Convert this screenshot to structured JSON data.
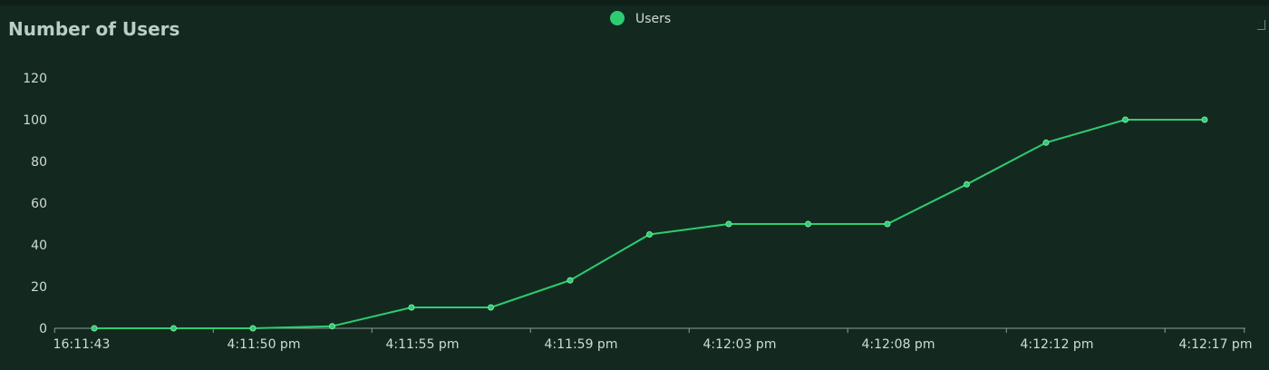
{
  "chart_data": {
    "type": "line",
    "title": "Number of Users",
    "categories": [
      "16:11:43",
      "",
      "4:11:50 pm",
      "",
      "4:11:55 pm",
      "",
      "4:11:59 pm",
      "",
      "4:12:03 pm",
      "",
      "4:12:08 pm",
      "",
      "4:12:12 pm",
      "",
      "4:12:17 pm"
    ],
    "series": [
      {
        "name": "Users",
        "color": "#2ecc71",
        "values": [
          0,
          0,
          0,
          1,
          10,
          10,
          23,
          45,
          50,
          50,
          50,
          69,
          89,
          100,
          100
        ]
      }
    ],
    "y_ticks": [
      "0",
      "20",
      "40",
      "60",
      "80",
      "100",
      "120"
    ],
    "ylim": [
      0,
      120
    ],
    "grid": false,
    "legend_position": "top-center"
  },
  "colors": {
    "background": "#132920",
    "line": "#2ecc71",
    "text": "#cfdcd5",
    "title": "#b9cfc4",
    "axis": "#8aa096"
  },
  "icons": {
    "expand": "expand-icon"
  }
}
